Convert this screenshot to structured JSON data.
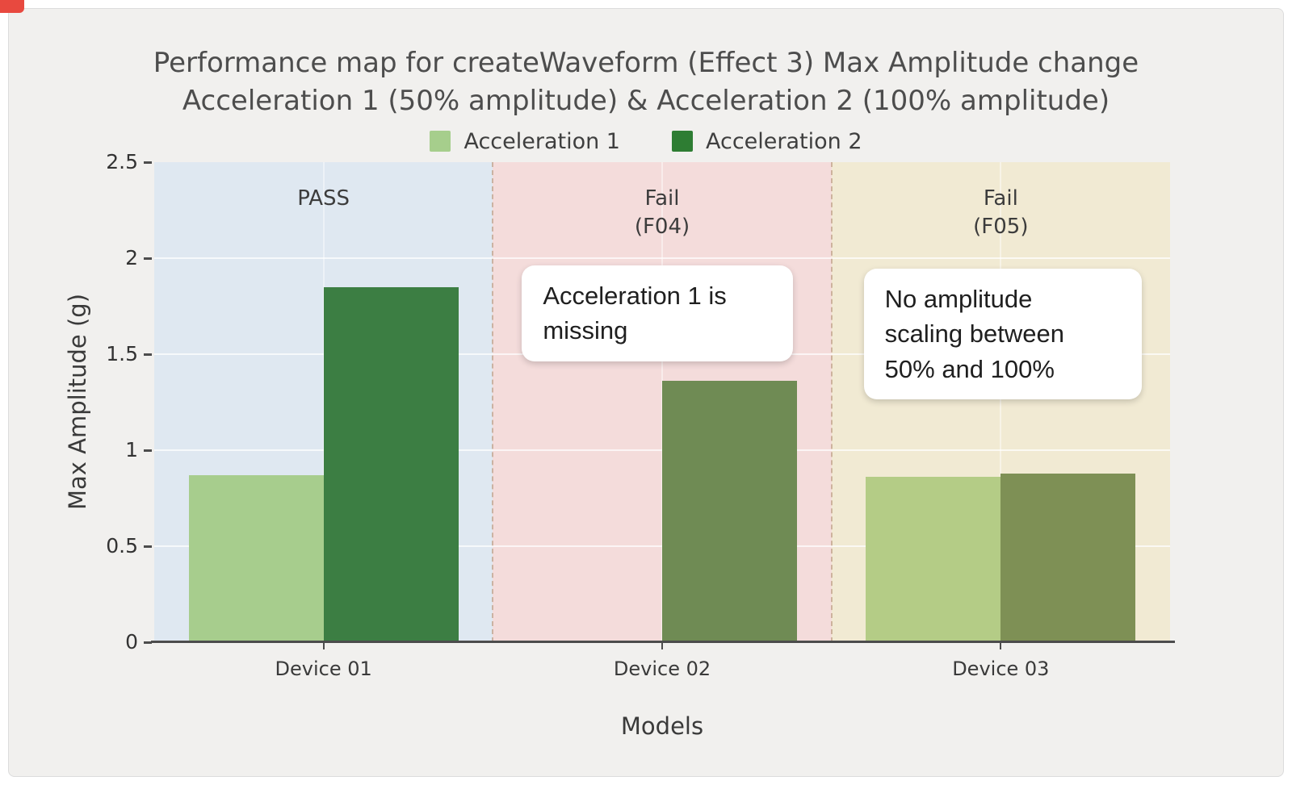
{
  "window": {
    "corner_marker_color": "#e8493f",
    "panel_background": "#f1f0ee"
  },
  "chart_data": {
    "type": "bar",
    "title_line1": "Performance map for createWaveform (Effect 3) Max Amplitude change",
    "title_line2": "Acceleration 1 (50% amplitude) & Acceleration 2 (100% amplitude)",
    "xlabel": "Models",
    "ylabel": "Max Amplitude (g)",
    "ylim": [
      0,
      2.5
    ],
    "yticks": [
      0,
      0.5,
      1,
      1.5,
      2,
      2.5
    ],
    "categories": [
      "Device 01",
      "Device 02",
      "Device 03"
    ],
    "series": [
      {
        "name": "Acceleration 1",
        "legend_color": "#a6ce8c",
        "values": [
          0.87,
          null,
          0.86
        ],
        "point_colors": [
          "#a7cd8d",
          null,
          "#b4cc86"
        ]
      },
      {
        "name": "Acceleration 2",
        "legend_color": "#2e7d33",
        "values": [
          1.85,
          1.36,
          0.88
        ],
        "point_colors": [
          "#3c7e43",
          "#6f8b54",
          "#7e9055"
        ]
      }
    ],
    "regions": [
      {
        "label_lines": [
          "PASS"
        ],
        "color": "#dfe8f1"
      },
      {
        "label_lines": [
          "Fail",
          "(F04)"
        ],
        "color": "#f4dcdb"
      },
      {
        "label_lines": [
          "Fail",
          "(F05)"
        ],
        "color": "#f1ead3"
      }
    ],
    "annotations": [
      {
        "lines": [
          "Acceleration 1 is",
          "missing"
        ],
        "category": "Device 02"
      },
      {
        "lines": [
          "No amplitude",
          "scaling between",
          "50% and 100%"
        ],
        "category": "Device 03"
      }
    ],
    "legend_position": "top",
    "grid": true
  }
}
